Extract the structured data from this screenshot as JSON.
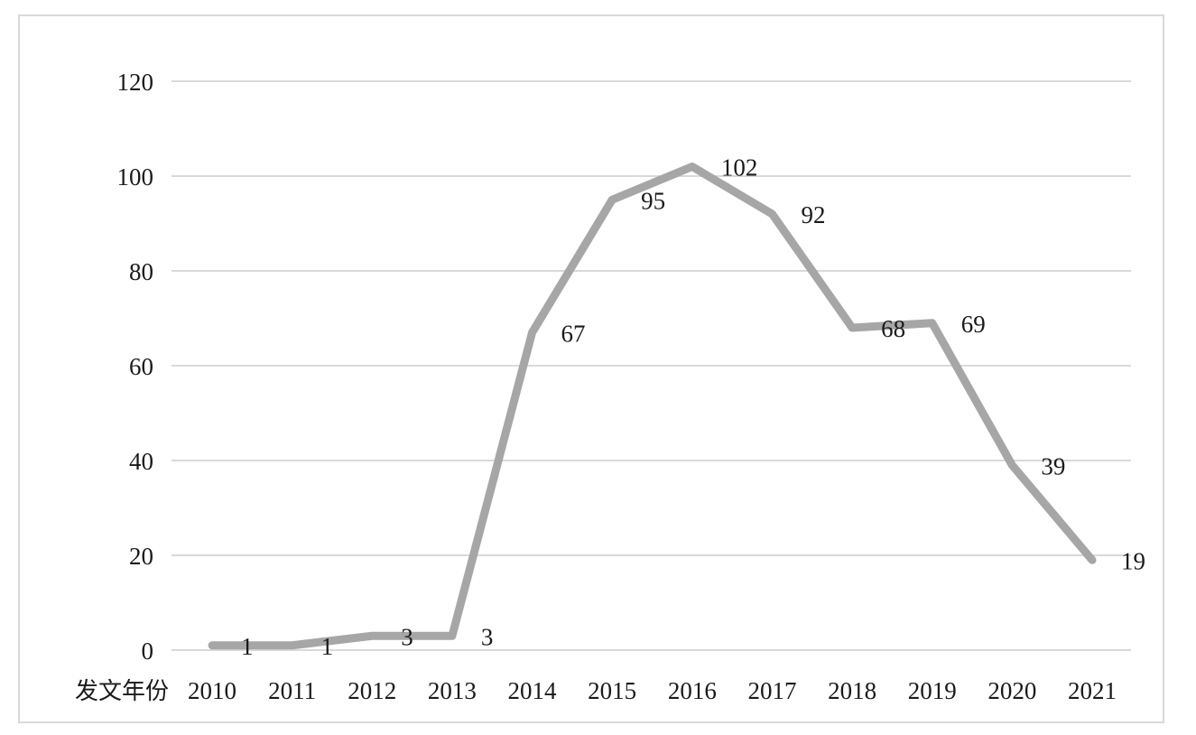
{
  "chart_data": {
    "type": "line",
    "title": "",
    "xlabel": "发文年份",
    "ylabel": "",
    "ylim": [
      0,
      120
    ],
    "yticks": [
      0,
      20,
      40,
      60,
      80,
      100,
      120
    ],
    "grid": true,
    "legend": "none",
    "categories": [
      "2010",
      "2011",
      "2012",
      "2013",
      "2014",
      "2015",
      "2016",
      "2017",
      "2018",
      "2019",
      "2020",
      "2021"
    ],
    "series": [
      {
        "values": [
          1,
          1,
          3,
          3,
          67,
          95,
          102,
          92,
          68,
          69,
          39,
          19
        ],
        "color": "#a6a6a6"
      }
    ],
    "colors": {
      "line": "#a6a6a6",
      "grid": "#d9d9d9",
      "text": "#1a1a1a"
    }
  }
}
